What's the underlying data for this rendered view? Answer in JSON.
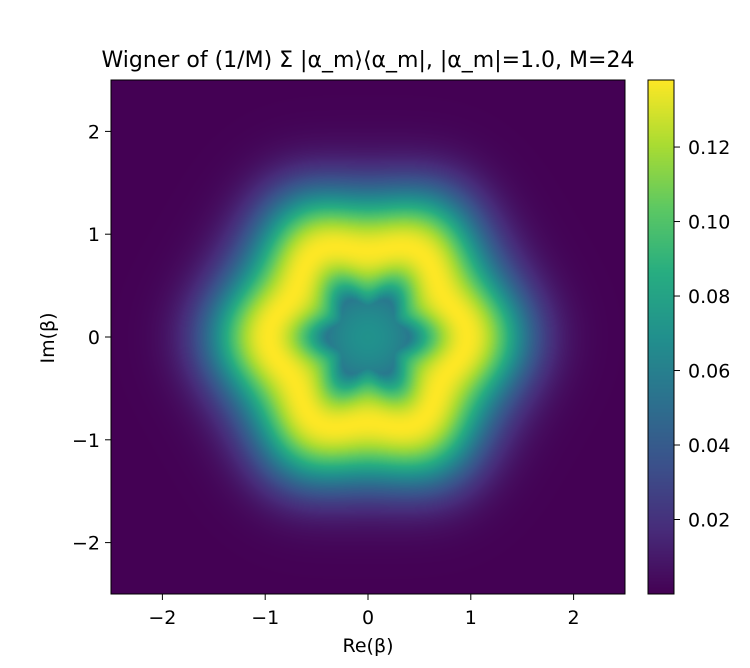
{
  "chart_data": {
    "type": "heatmap",
    "title": "Wigner of (1/M) Σ |α_m⟩⟨α_m|,  |α_m|=1.0,  M=24",
    "xlabel": "Re(β)",
    "ylabel": "Im(β)",
    "xlim": [
      -2.5,
      2.5
    ],
    "ylim": [
      -2.5,
      2.5
    ],
    "x_ticks": [
      -2,
      -1,
      0,
      1,
      2
    ],
    "y_ticks": [
      -2,
      -1,
      0,
      1,
      2
    ],
    "x_tick_labels": [
      "−2",
      "−1",
      "0",
      "1",
      "2"
    ],
    "y_tick_labels": [
      "−2",
      "−1",
      "0",
      "1",
      "2"
    ],
    "colormap": "viridis",
    "grid": false,
    "colorbar": {
      "range": [
        0.0,
        0.138
      ],
      "ticks": [
        0.02,
        0.04,
        0.06,
        0.08,
        0.1,
        0.12
      ],
      "tick_labels": [
        "0.02",
        "0.04",
        "0.06",
        "0.08",
        "0.10",
        "0.12"
      ]
    },
    "field": {
      "description_values": {
        "center_value": 0.07,
        "ring_radius": 0.9,
        "ring_peak_value": 0.138,
        "ring_angular_order": 6,
        "edge_value": 0.0
      }
    }
  }
}
